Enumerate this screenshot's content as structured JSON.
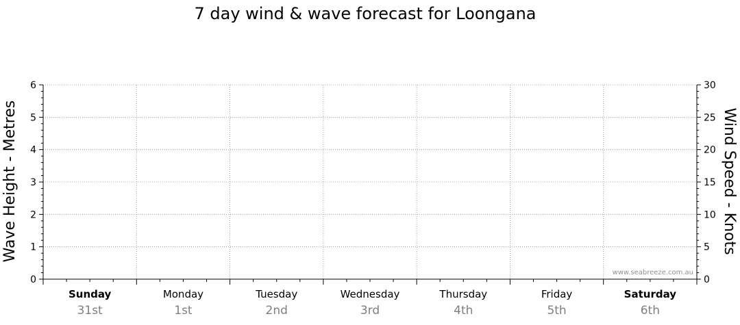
{
  "chart_data": {
    "type": "line",
    "title": "7 day wind & wave forecast for Loongana",
    "ylabel": "Wave Height - Metres",
    "y2label": "Wind Speed - Knots",
    "ylim": [
      0,
      6
    ],
    "y2lim": [
      0,
      30
    ],
    "yticks": [
      "0",
      "1",
      "2",
      "3",
      "4",
      "5",
      "6"
    ],
    "y2ticks": [
      "0",
      "5",
      "10",
      "15",
      "20",
      "25",
      "30"
    ],
    "grid": true,
    "days": [
      {
        "name": "Sunday",
        "date": "31st",
        "bold": true
      },
      {
        "name": "Monday",
        "date": "1st",
        "bold": false
      },
      {
        "name": "Tuesday",
        "date": "2nd",
        "bold": false
      },
      {
        "name": "Wednesday",
        "date": "3rd",
        "bold": false
      },
      {
        "name": "Thursday",
        "date": "4th",
        "bold": false
      },
      {
        "name": "Friday",
        "date": "5th",
        "bold": false
      },
      {
        "name": "Saturday",
        "date": "6th",
        "bold": true
      }
    ],
    "series": []
  },
  "watermark": "www.seabreeze.com.au"
}
